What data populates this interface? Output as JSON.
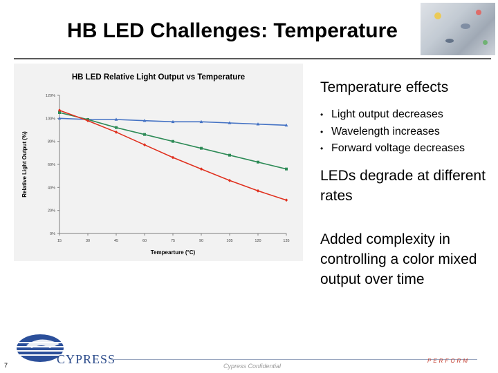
{
  "slide": {
    "title": "HB LED Challenges: Temperature",
    "page_number": "7",
    "footer_confidential": "Cypress Confidential",
    "footer_tagline": "PERFORM",
    "logo_text": "CYPRESS"
  },
  "right_panel": {
    "heading": "Temperature effects",
    "bullets": [
      "Light output decreases",
      "Wavelength increases",
      "Forward voltage decreases"
    ],
    "paragraph2": "LEDs degrade at different rates",
    "paragraph3": "Added complexity in controlling a color mixed output over time"
  },
  "chart_data": {
    "type": "line",
    "title": "HB LED Relative Light Output vs Temperature",
    "xlabel": "Tempearture (°C)",
    "ylabel": "Relative Light Output (%)",
    "x": [
      15,
      30,
      45,
      60,
      75,
      90,
      105,
      120,
      135
    ],
    "x_tick_labels": [
      "15",
      "30",
      "45",
      "60",
      "75",
      "90",
      "105",
      "120",
      "135"
    ],
    "ylim": [
      0,
      120
    ],
    "y_ticks": [
      0,
      20,
      40,
      60,
      80,
      100,
      120
    ],
    "y_tick_labels": [
      "0%",
      "20%",
      "40%",
      "60%",
      "80%",
      "100%",
      "120%"
    ],
    "grid": false,
    "legend": "none",
    "series": [
      {
        "color": "#4472c4",
        "marker": "triangle",
        "values": [
          100,
          99,
          99,
          98,
          97,
          97,
          96,
          95,
          94
        ]
      },
      {
        "color": "#2e8b57",
        "marker": "square",
        "values": [
          105,
          99,
          92,
          86,
          80,
          74,
          68,
          62,
          56
        ]
      },
      {
        "color": "#e0301e",
        "marker": "diamond",
        "values": [
          107,
          98,
          88,
          77,
          66,
          56,
          46,
          37,
          29
        ]
      }
    ]
  }
}
